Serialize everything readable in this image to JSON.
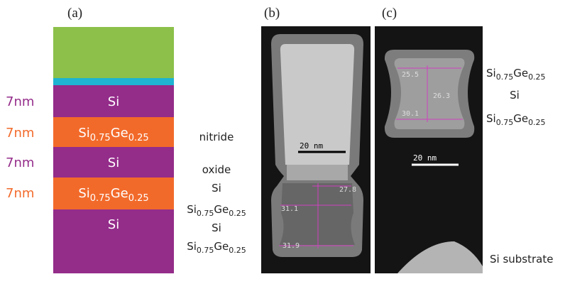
{
  "panel_a": {
    "label": "(a)",
    "layers": [
      {
        "material": "Si",
        "thickness": "7nm"
      },
      {
        "material": [
          "Si",
          "0.75",
          "Ge",
          "0.25"
        ],
        "thickness": "7nm"
      },
      {
        "material": "Si",
        "thickness": "7nm"
      },
      {
        "material": [
          "Si",
          "0.75",
          "Ge",
          "0.25"
        ],
        "thickness": "7nm"
      },
      {
        "material": "Si"
      }
    ]
  },
  "legend_b": [
    "nitride",
    "oxide",
    "Si",
    [
      "Si",
      "0.75",
      "Ge",
      "0.25"
    ],
    "Si",
    [
      "Si",
      "0.75",
      "Ge",
      "0.25"
    ]
  ],
  "panel_b": {
    "label": "(b)",
    "scale_bar": "20 nm",
    "measurements": [
      "27.8",
      "31.1",
      "31.9"
    ]
  },
  "panel_c": {
    "label": "(c)",
    "scale_bar": "20 nm",
    "measurements": [
      "25.5",
      "26.3",
      "30.1"
    ]
  },
  "legend_c": [
    [
      "Si",
      "0.75",
      "Ge",
      "0.25"
    ],
    "Si",
    [
      "Si",
      "0.75",
      "Ge",
      "0.25"
    ],
    "Si substrate"
  ]
}
